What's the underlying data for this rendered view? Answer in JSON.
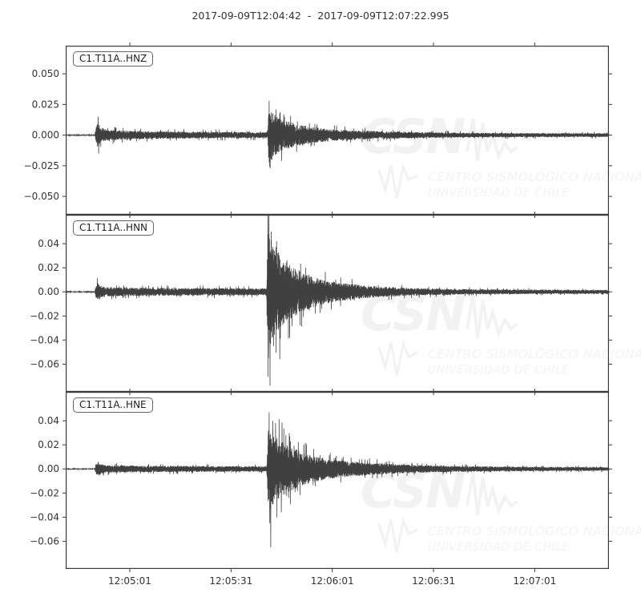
{
  "title": "2017-09-09T12:04:42  -  2017-09-09T12:07:22.995",
  "watermark": {
    "acronym": "CSN",
    "line1": "CENTRO SISMOLÓGICO NACIONAL",
    "line2": "UNIVERSIDAD DE CHILE",
    "color": "rgba(0,0,0,0.05)"
  },
  "chart_data": {
    "type": "line",
    "kind": "seismogram-3-component",
    "start_time": "2017-09-09T12:04:42",
    "end_time": "2017-09-09T12:07:22.995",
    "duration_s": 160.995,
    "trace_color": "#404040",
    "frame_color": "#3a3a3a",
    "label_color": "#333333",
    "grid": false,
    "x_ticks": {
      "offsets_s": [
        19,
        49,
        79,
        109,
        139
      ],
      "labels": [
        "12:05:01",
        "12:05:31",
        "12:06:01",
        "12:06:31",
        "12:07:01"
      ]
    },
    "traces": [
      {
        "id": "C1.T11A..HNZ",
        "seed": 11,
        "ylim": [
          -0.065,
          0.073
        ],
        "ytick_values": [
          0.05,
          0.025,
          0.0,
          -0.025,
          -0.05
        ],
        "ytick_labels": [
          "0.050",
          "0.025",
          "0.000",
          "−0.025",
          "−0.050"
        ],
        "envelope": [
          [
            0,
            0.0003
          ],
          [
            8.6,
            0.0003
          ],
          [
            9.0,
            0.006
          ],
          [
            9.5,
            0.012
          ],
          [
            10.3,
            0.006
          ],
          [
            12,
            0.004
          ],
          [
            20,
            0.003
          ],
          [
            40,
            0.0025
          ],
          [
            58,
            0.0022
          ],
          [
            59.9,
            0.0022
          ],
          [
            60.15,
            0.022
          ],
          [
            61.5,
            0.016
          ],
          [
            63.5,
            0.012
          ],
          [
            66,
            0.01
          ],
          [
            69,
            0.008
          ],
          [
            73,
            0.006
          ],
          [
            78,
            0.0045
          ],
          [
            85,
            0.0035
          ],
          [
            95,
            0.0028
          ],
          [
            110,
            0.002
          ],
          [
            130,
            0.0016
          ],
          [
            161,
            0.0014
          ]
        ],
        "spikes": [
          [
            9.6,
            0.015
          ],
          [
            9.75,
            -0.015
          ],
          [
            60.3,
            0.028
          ],
          [
            60.6,
            -0.027
          ],
          [
            61.1,
            -0.02
          ],
          [
            62.3,
            0.021
          ],
          [
            64.6,
            0.017
          ]
        ]
      },
      {
        "id": "C1.T11A..HNN",
        "seed": 22,
        "ylim": [
          -0.083,
          0.064
        ],
        "ytick_values": [
          0.04,
          0.02,
          0.0,
          -0.02,
          -0.04,
          -0.06
        ],
        "ytick_labels": [
          "0.04",
          "0.02",
          "0.00",
          "−0.02",
          "−0.04",
          "−0.06"
        ],
        "envelope": [
          [
            0,
            0.0003
          ],
          [
            8.6,
            0.0003
          ],
          [
            9.0,
            0.005
          ],
          [
            9.6,
            0.007
          ],
          [
            10.5,
            0.0045
          ],
          [
            12,
            0.0035
          ],
          [
            25,
            0.003
          ],
          [
            45,
            0.0028
          ],
          [
            58,
            0.0026
          ],
          [
            59.5,
            0.0026
          ],
          [
            59.9,
            0.045
          ],
          [
            60.8,
            0.04
          ],
          [
            62,
            0.034
          ],
          [
            63.5,
            0.028
          ],
          [
            65.5,
            0.023
          ],
          [
            68,
            0.018
          ],
          [
            71,
            0.014
          ],
          [
            75,
            0.01
          ],
          [
            80,
            0.0075
          ],
          [
            86,
            0.0055
          ],
          [
            93,
            0.004
          ],
          [
            102,
            0.003
          ],
          [
            115,
            0.0022
          ],
          [
            135,
            0.0017
          ],
          [
            161,
            0.0015
          ]
        ],
        "spikes": [
          [
            59.92,
            0.085
          ],
          [
            60.1,
            -0.055
          ],
          [
            60.25,
            0.07
          ],
          [
            60.55,
            -0.078
          ],
          [
            60.9,
            0.05
          ],
          [
            61.6,
            -0.045
          ],
          [
            62.5,
            0.042
          ],
          [
            63.45,
            -0.056
          ]
        ]
      },
      {
        "id": "C1.T11A..HNE",
        "seed": 33,
        "ylim": [
          -0.083,
          0.064
        ],
        "ytick_values": [
          0.04,
          0.02,
          0.0,
          -0.02,
          -0.04,
          -0.06
        ],
        "ytick_labels": [
          "0.04",
          "0.02",
          "0.00",
          "−0.02",
          "−0.04",
          "−0.06"
        ],
        "envelope": [
          [
            0,
            0.0003
          ],
          [
            8.6,
            0.0003
          ],
          [
            9.0,
            0.004
          ],
          [
            9.7,
            0.0055
          ],
          [
            10.6,
            0.0035
          ],
          [
            12,
            0.0028
          ],
          [
            25,
            0.0024
          ],
          [
            45,
            0.0022
          ],
          [
            58,
            0.002
          ],
          [
            59.6,
            0.002
          ],
          [
            60.05,
            0.032
          ],
          [
            61,
            0.028
          ],
          [
            62.5,
            0.024
          ],
          [
            64.5,
            0.02
          ],
          [
            66.5,
            0.017
          ],
          [
            69,
            0.014
          ],
          [
            72,
            0.011
          ],
          [
            76,
            0.0085
          ],
          [
            81,
            0.0065
          ],
          [
            88,
            0.005
          ],
          [
            96,
            0.0038
          ],
          [
            106,
            0.0029
          ],
          [
            118,
            0.0022
          ],
          [
            135,
            0.0017
          ],
          [
            161,
            0.0014
          ]
        ],
        "spikes": [
          [
            60.3,
            0.047
          ],
          [
            60.5,
            -0.045
          ],
          [
            60.75,
            -0.065
          ],
          [
            61.4,
            0.04
          ],
          [
            62.2,
            0.038
          ],
          [
            63.9,
            -0.036
          ],
          [
            66.4,
            0.027
          ]
        ]
      }
    ]
  }
}
